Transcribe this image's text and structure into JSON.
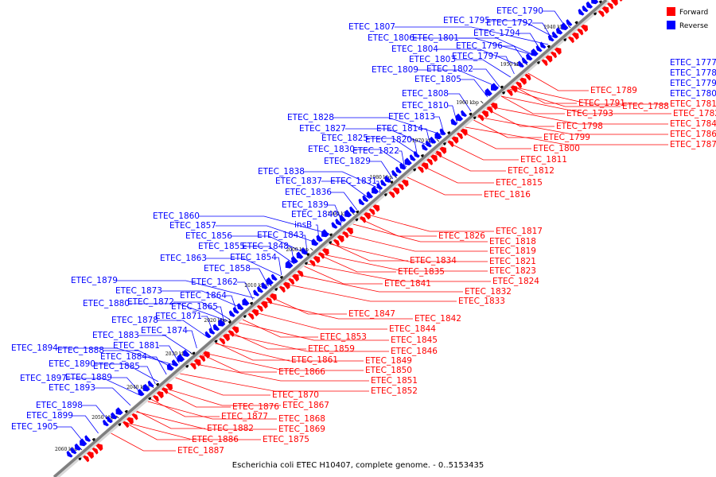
{
  "caption": "Escherichia coli ETEC H10407, complete genome. - 0..5153435",
  "legend": [
    {
      "label": "Forward",
      "color": "#ff0000"
    },
    {
      "label": "Reverse",
      "color": "#0000ff"
    }
  ],
  "colors": {
    "forward": "#ff0000",
    "reverse": "#0000ff",
    "other": "#000000",
    "backbone": "#7f7f7f"
  },
  "ticks": [
    "1940 kbp",
    "1950 kbp",
    "1960 kbp",
    "1970 kbp",
    "1980 kbp",
    "1990 kbp",
    "2000 kbp",
    "2010 kbp",
    "2020 kbp",
    "2030 kbp",
    "2040 kbp",
    "2050 kbp",
    "2060 kbp"
  ],
  "reverse_labels": [
    "ETEC_1790",
    "ETEC_1795",
    "ETEC_1792",
    "ETEC_1807",
    "ETEC_1806",
    "ETEC_1801",
    "ETEC_1794",
    "ETEC_1804",
    "ETEC_1796",
    "ETEC_1803",
    "ETEC_1797",
    "ETEC_1809",
    "ETEC_1802",
    "ETEC_1805",
    "ETEC_1808",
    "ETEC_1810",
    "ETEC_1813",
    "ETEC_1828",
    "ETEC_1827",
    "ETEC_1814",
    "ETEC_1825",
    "ETEC_1820",
    "ETEC_1830",
    "ETEC_1822",
    "ETEC_1829",
    "ETEC_1838",
    "ETEC_1837",
    "ETEC_1831",
    "ETEC_1836",
    "ETEC_1839",
    "ETEC_1860",
    "ETEC_1840",
    "ETEC_1857",
    "insB",
    "ETEC_1856",
    "ETEC_1843",
    "ETEC_1855",
    "ETEC_1848",
    "ETEC_1863",
    "ETEC_1854",
    "ETEC_1858",
    "ETEC_1879",
    "ETEC_1862",
    "ETEC_1873",
    "ETEC_1864",
    "ETEC_1872",
    "ETEC_1880",
    "ETEC_1865",
    "ETEC_1878",
    "ETEC_1871",
    "ETEC_1874",
    "ETEC_1883",
    "ETEC_1881",
    "ETEC_1894",
    "ETEC_1888",
    "ETEC_1884",
    "ETEC_1890",
    "ETEC_1885",
    "ETEC_1897",
    "ETEC_1889",
    "ETEC_1893",
    "ETEC_1898",
    "ETEC_1899",
    "ETEC_1905",
    "ETEC_1777",
    "ETEC_1778",
    "ETEC_1779",
    "ETEC_1780"
  ],
  "forward_labels": [
    "ETEC_1781",
    "ETEC_1782",
    "ETEC_1784",
    "ETEC_1786",
    "ETEC_1787",
    "ETEC_1789",
    "ETEC_1791",
    "ETEC_1788",
    "ETEC_1793",
    "ETEC_1798",
    "ETEC_1799",
    "ETEC_1800",
    "ETEC_1811",
    "ETEC_1812",
    "ETEC_1815",
    "ETEC_1816",
    "ETEC_1817",
    "ETEC_1826",
    "ETEC_1818",
    "ETEC_1819",
    "ETEC_1821",
    "ETEC_1834",
    "ETEC_1823",
    "ETEC_1835",
    "ETEC_1824",
    "ETEC_1841",
    "ETEC_1832",
    "ETEC_1833",
    "ETEC_1847",
    "ETEC_1842",
    "ETEC_1844",
    "ETEC_1853",
    "ETEC_1845",
    "ETEC_1859",
    "ETEC_1846",
    "ETEC_1861",
    "ETEC_1849",
    "ETEC_1850",
    "ETEC_1866",
    "ETEC_1851",
    "ETEC_1852",
    "ETEC_1870",
    "ETEC_1867",
    "ETEC_1876",
    "ETEC_1877",
    "ETEC_1868",
    "ETEC_1882",
    "ETEC_1869",
    "ETEC_1886",
    "ETEC_1875",
    "ETEC_1887"
  ]
}
